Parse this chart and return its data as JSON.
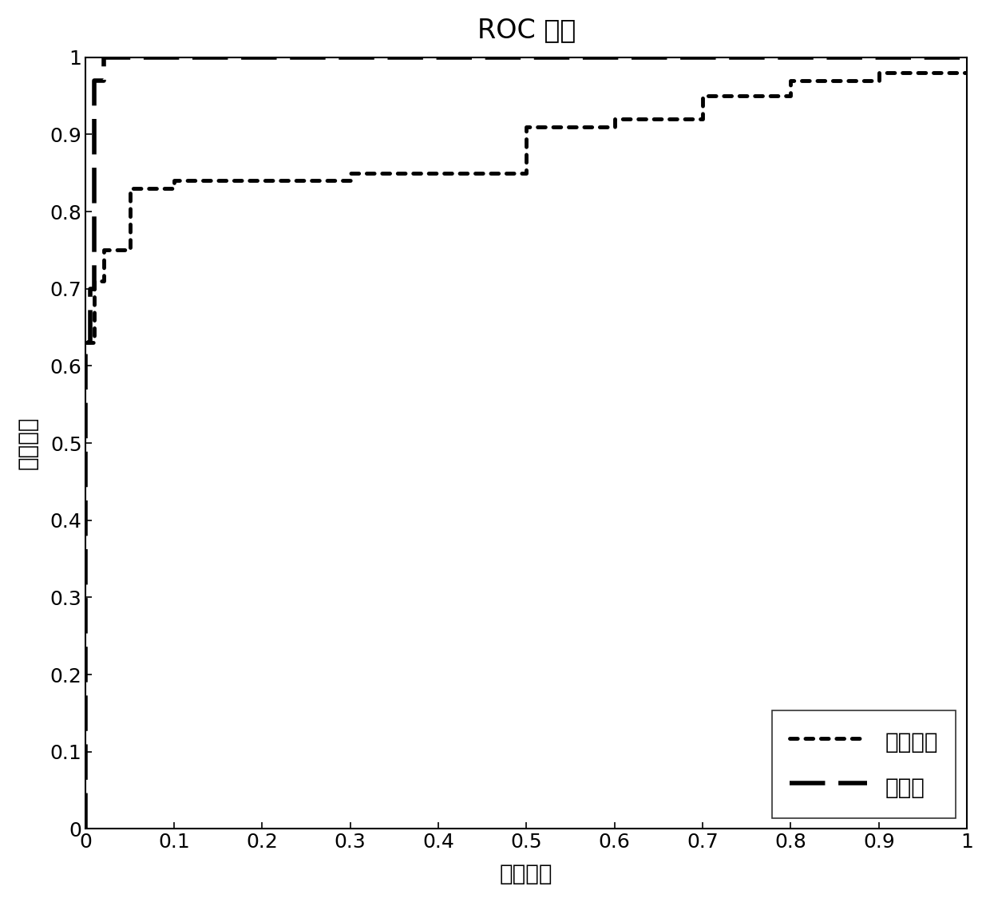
{
  "title": "ROC 曲线",
  "xlabel": "假阳性率",
  "ylabel": "真阳性率",
  "xlim": [
    0,
    1
  ],
  "ylim": [
    0,
    1
  ],
  "xticks": [
    0,
    0.1,
    0.2,
    0.3,
    0.4,
    0.5,
    0.6,
    0.7,
    0.8,
    0.9,
    1
  ],
  "yticks": [
    0,
    0.1,
    0.2,
    0.3,
    0.4,
    0.5,
    0.6,
    0.7,
    0.8,
    0.9,
    1
  ],
  "dotted_x": [
    0,
    0.01,
    0.01,
    0.02,
    0.02,
    0.05,
    0.05,
    0.1,
    0.1,
    0.13,
    0.13,
    0.3,
    0.3,
    0.5,
    0.5,
    0.5,
    0.5,
    0.6,
    0.6,
    0.7,
    0.7,
    0.8,
    0.8,
    0.9,
    0.9,
    1.0
  ],
  "dotted_y": [
    0.63,
    0.63,
    0.71,
    0.71,
    0.75,
    0.75,
    0.83,
    0.83,
    0.84,
    0.84,
    0.84,
    0.84,
    0.85,
    0.85,
    0.88,
    0.88,
    0.91,
    0.91,
    0.92,
    0.92,
    0.95,
    0.95,
    0.97,
    0.97,
    0.98,
    0.98
  ],
  "dashed_x": [
    0,
    0,
    0.005,
    0.005,
    0.01,
    0.01,
    0.02,
    0.02,
    1.0
  ],
  "dashed_y": [
    0,
    0.63,
    0.63,
    0.7,
    0.7,
    0.97,
    0.97,
    1.0,
    1.0
  ],
  "line_color": "#000000",
  "background_color": "#ffffff",
  "title_fontsize": 24,
  "label_fontsize": 20,
  "tick_fontsize": 18,
  "legend_fontsize": 20,
  "legend_label_dotted": "传统方法",
  "legend_label_dashed": "本方法"
}
